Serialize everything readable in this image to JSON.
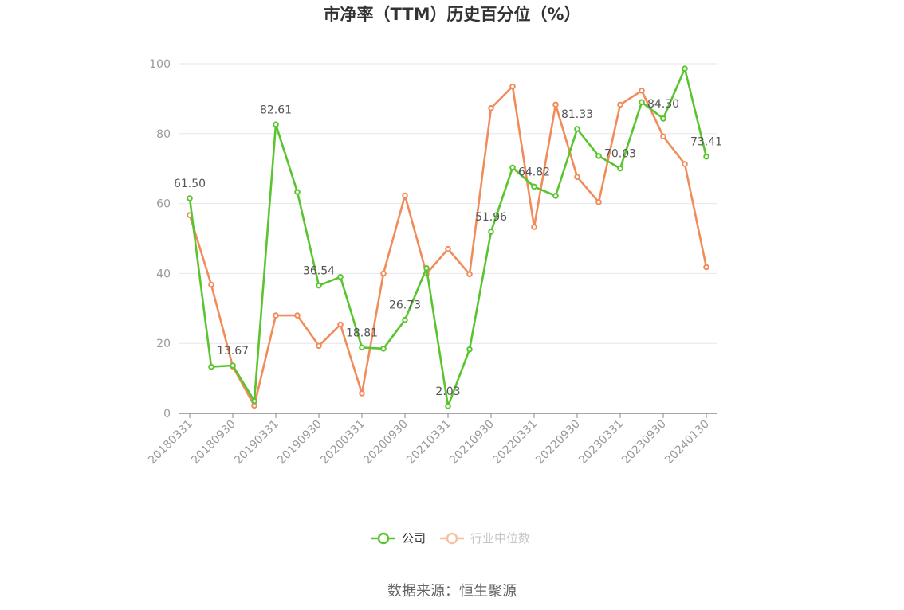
{
  "page": {
    "title": "市净率（TTM）历史百分位（%）",
    "source": "数据来源：恒生聚源"
  },
  "colors": {
    "company": "#5ac42f",
    "industry": "#f28b5a",
    "grid": "#e6e6ee",
    "axis": "#8a8a8a"
  },
  "chart_data": {
    "type": "line",
    "title": "市净率（TTM）历史百分位（%）",
    "ylim": [
      0,
      100
    ],
    "yticks": [
      0,
      20,
      40,
      60,
      80,
      100
    ],
    "grid": true,
    "legend_position": "bottom-center",
    "x": [
      "20180331",
      "20180630",
      "20180930",
      "20181231",
      "20190331",
      "20190630",
      "20190930",
      "20191231",
      "20200331",
      "20200630",
      "20200930",
      "20201231",
      "20210331",
      "20210630",
      "20210930",
      "20211231",
      "20220331",
      "20220630",
      "20220930",
      "20221231",
      "20230331",
      "20230630",
      "20230930",
      "20231231",
      "20240130"
    ],
    "x_tick_labels": [
      "20180331",
      "20180930",
      "20190331",
      "20190930",
      "20200331",
      "20200930",
      "20210331",
      "20210930",
      "20220331",
      "20220930",
      "20230331",
      "20230930",
      "20240130"
    ],
    "series": [
      {
        "name": "公司",
        "values": [
          61.5,
          13.3,
          13.67,
          3.5,
          82.61,
          63.3,
          36.54,
          39.0,
          18.81,
          18.5,
          26.73,
          41.5,
          2.03,
          18.3,
          51.96,
          70.3,
          64.82,
          62.2,
          81.33,
          73.6,
          70.03,
          89.0,
          84.3,
          98.6,
          73.41
        ],
        "labels": {
          "0": "61.50",
          "2": "13.67",
          "4": "82.61",
          "6": "36.54",
          "8": "18.81",
          "10": "26.73",
          "12": "2.03",
          "14": "51.96",
          "16": "64.82",
          "18": "81.33",
          "20": "70.03",
          "22": "84.30",
          "24": "73.41"
        }
      },
      {
        "name": "行业中位数",
        "values": [
          56.7,
          36.8,
          13.4,
          2.2,
          28.0,
          28.0,
          19.3,
          25.4,
          5.7,
          40.0,
          62.3,
          39.9,
          47.0,
          39.8,
          87.3,
          93.5,
          53.3,
          88.3,
          67.6,
          60.4,
          88.3,
          92.3,
          79.2,
          71.3,
          41.8
        ]
      }
    ]
  }
}
